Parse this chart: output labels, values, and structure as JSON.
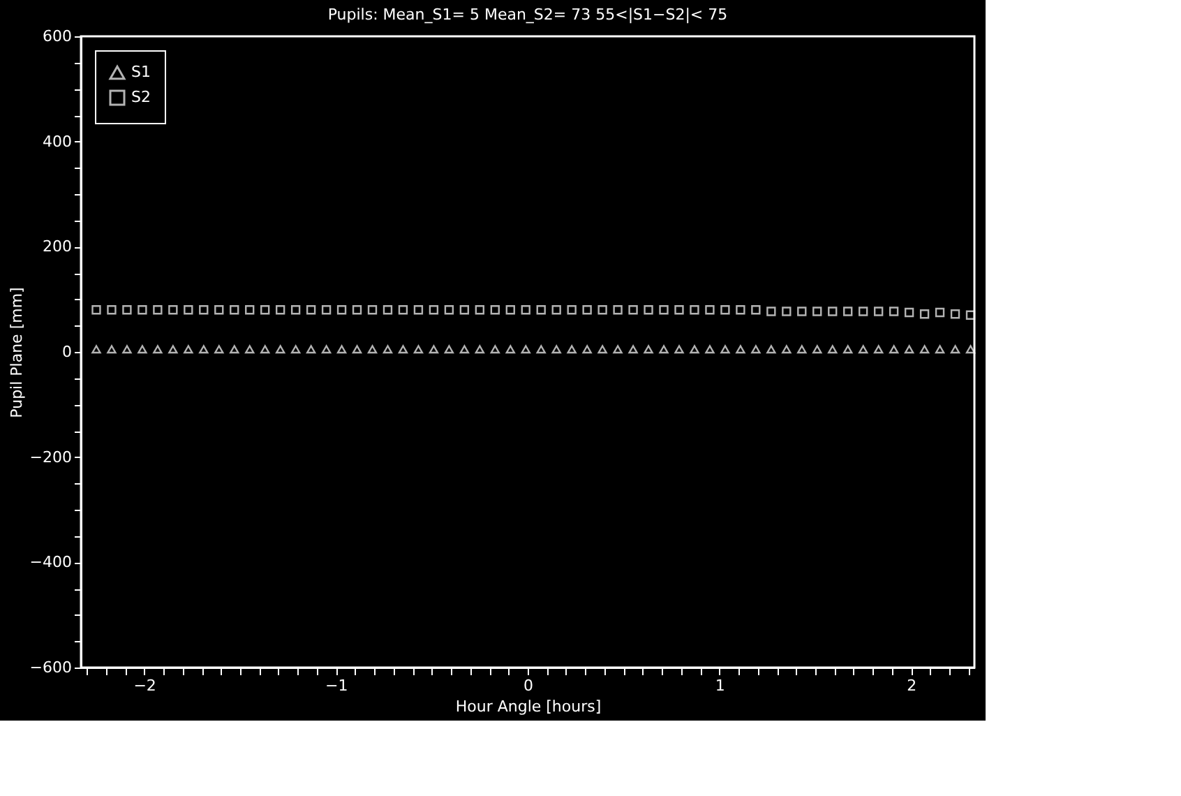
{
  "chart_data": {
    "type": "scatter",
    "title": "Pupils: Mean_S1=    5 Mean_S2=   73    55<|S1−S2|< 75",
    "xlabel": "Hour Angle [hours]",
    "ylabel": "Pupil Plane [mm]",
    "x": [
      -2.25,
      -2.17,
      -2.09,
      -2.01,
      -1.93,
      -1.85,
      -1.77,
      -1.69,
      -1.61,
      -1.53,
      -1.45,
      -1.37,
      -1.29,
      -1.21,
      -1.13,
      -1.05,
      -0.97,
      -0.89,
      -0.81,
      -0.73,
      -0.65,
      -0.57,
      -0.49,
      -0.41,
      -0.33,
      -0.25,
      -0.17,
      -0.09,
      -0.01,
      0.07,
      0.15,
      0.23,
      0.31,
      0.39,
      0.47,
      0.55,
      0.63,
      0.71,
      0.79,
      0.87,
      0.95,
      1.03,
      1.11,
      1.19,
      1.27,
      1.35,
      1.43,
      1.51,
      1.59,
      1.67,
      1.75,
      1.83,
      1.91,
      1.99,
      2.07,
      2.15,
      2.23,
      2.31
    ],
    "series": [
      {
        "name": "S1",
        "color": "#ffffff",
        "marker": "triangle",
        "values": [
          5,
          5,
          5,
          5,
          5,
          5,
          5,
          5,
          5,
          5,
          5,
          5,
          5,
          5,
          5,
          5,
          5,
          5,
          5,
          5,
          5,
          5,
          5,
          5,
          5,
          5,
          5,
          5,
          5,
          5,
          5,
          5,
          5,
          5,
          5,
          5,
          5,
          5,
          5,
          5,
          5,
          5,
          5,
          5,
          5,
          5,
          5,
          5,
          5,
          5,
          5,
          5,
          5,
          5,
          5,
          5,
          5,
          5
        ]
      },
      {
        "name": "S2",
        "color": "#ffffff",
        "marker": "square",
        "values": [
          80,
          80,
          80,
          80,
          80,
          80,
          80,
          80,
          80,
          80,
          80,
          80,
          80,
          80,
          80,
          80,
          80,
          80,
          80,
          80,
          80,
          80,
          80,
          80,
          80,
          80,
          80,
          80,
          80,
          80,
          80,
          80,
          80,
          80,
          80,
          80,
          80,
          80,
          80,
          80,
          80,
          80,
          80,
          80,
          77,
          77,
          77,
          77,
          77,
          77,
          77,
          77,
          77,
          75,
          72,
          75,
          72,
          70
        ]
      }
    ],
    "xlim": [
      -2.33,
      2.33
    ],
    "ylim": [
      -600,
      600
    ],
    "xticks": [
      {
        "value": -2,
        "label": "−2"
      },
      {
        "value": -1,
        "label": "−1"
      },
      0,
      1,
      2,
      {
        "value": -2.3,
        "label": null
      },
      {
        "value": -2.2,
        "label": null
      },
      {
        "value": -2.1,
        "label": null
      },
      {
        "value": -1.9,
        "label": null
      },
      {
        "value": -1.8,
        "label": null
      },
      {
        "value": -1.7,
        "label": null
      },
      {
        "value": -1.6,
        "label": null
      },
      {
        "value": -1.5,
        "label": null
      },
      {
        "value": -1.4,
        "label": null
      },
      {
        "value": -1.3,
        "label": null
      },
      {
        "value": -1.2,
        "label": null
      },
      {
        "value": -1.1,
        "label": null
      },
      {
        "value": -0.9,
        "label": null
      },
      {
        "value": -0.8,
        "label": null
      },
      {
        "value": -0.7,
        "label": null
      },
      {
        "value": -0.6,
        "label": null
      },
      {
        "value": -0.5,
        "label": null
      },
      {
        "value": -0.4,
        "label": null
      },
      {
        "value": -0.3,
        "label": null
      },
      {
        "value": -0.2,
        "label": null
      },
      {
        "value": -0.1,
        "label": null
      },
      {
        "value": 0.1,
        "label": null
      },
      {
        "value": 0.2,
        "label": null
      },
      {
        "value": 0.3,
        "label": null
      },
      {
        "value": 0.4,
        "label": null
      },
      {
        "value": 0.5,
        "label": null
      },
      {
        "value": 0.6,
        "label": null
      },
      {
        "value": 0.7,
        "label": null
      },
      {
        "value": 0.8,
        "label": null
      },
      {
        "value": 0.9,
        "label": null
      },
      {
        "value": 1.1,
        "label": null
      },
      {
        "value": 1.2,
        "label": null
      },
      {
        "value": 1.3,
        "label": null
      },
      {
        "value": 1.4,
        "label": null
      },
      {
        "value": 1.5,
        "label": null
      },
      {
        "value": 1.6,
        "label": null
      },
      {
        "value": 1.7,
        "label": null
      },
      {
        "value": 1.8,
        "label": null
      },
      {
        "value": 1.9,
        "label": null
      },
      {
        "value": 2.1,
        "label": null
      },
      {
        "value": 2.2,
        "label": null
      },
      {
        "value": 2.3,
        "label": null
      }
    ],
    "yticks": [
      {
        "value": -600,
        "label": "−600"
      },
      {
        "value": -400,
        "label": "−400"
      },
      {
        "value": -200,
        "label": "−200"
      },
      0,
      200,
      400,
      600,
      {
        "value": -550,
        "label": null
      },
      {
        "value": -500,
        "label": null
      },
      {
        "value": -450,
        "label": null
      },
      {
        "value": -350,
        "label": null
      },
      {
        "value": -300,
        "label": null
      },
      {
        "value": -250,
        "label": null
      },
      {
        "value": -150,
        "label": null
      },
      {
        "value": -100,
        "label": null
      },
      {
        "value": -50,
        "label": null
      },
      {
        "value": 50,
        "label": null
      },
      {
        "value": 100,
        "label": null
      },
      {
        "value": 150,
        "label": null
      },
      {
        "value": 250,
        "label": null
      },
      {
        "value": 300,
        "label": null
      },
      {
        "value": 350,
        "label": null
      },
      {
        "value": 450,
        "label": null
      },
      {
        "value": 500,
        "label": null
      },
      {
        "value": 550,
        "label": null
      }
    ],
    "grid": false,
    "legend": "top left"
  }
}
